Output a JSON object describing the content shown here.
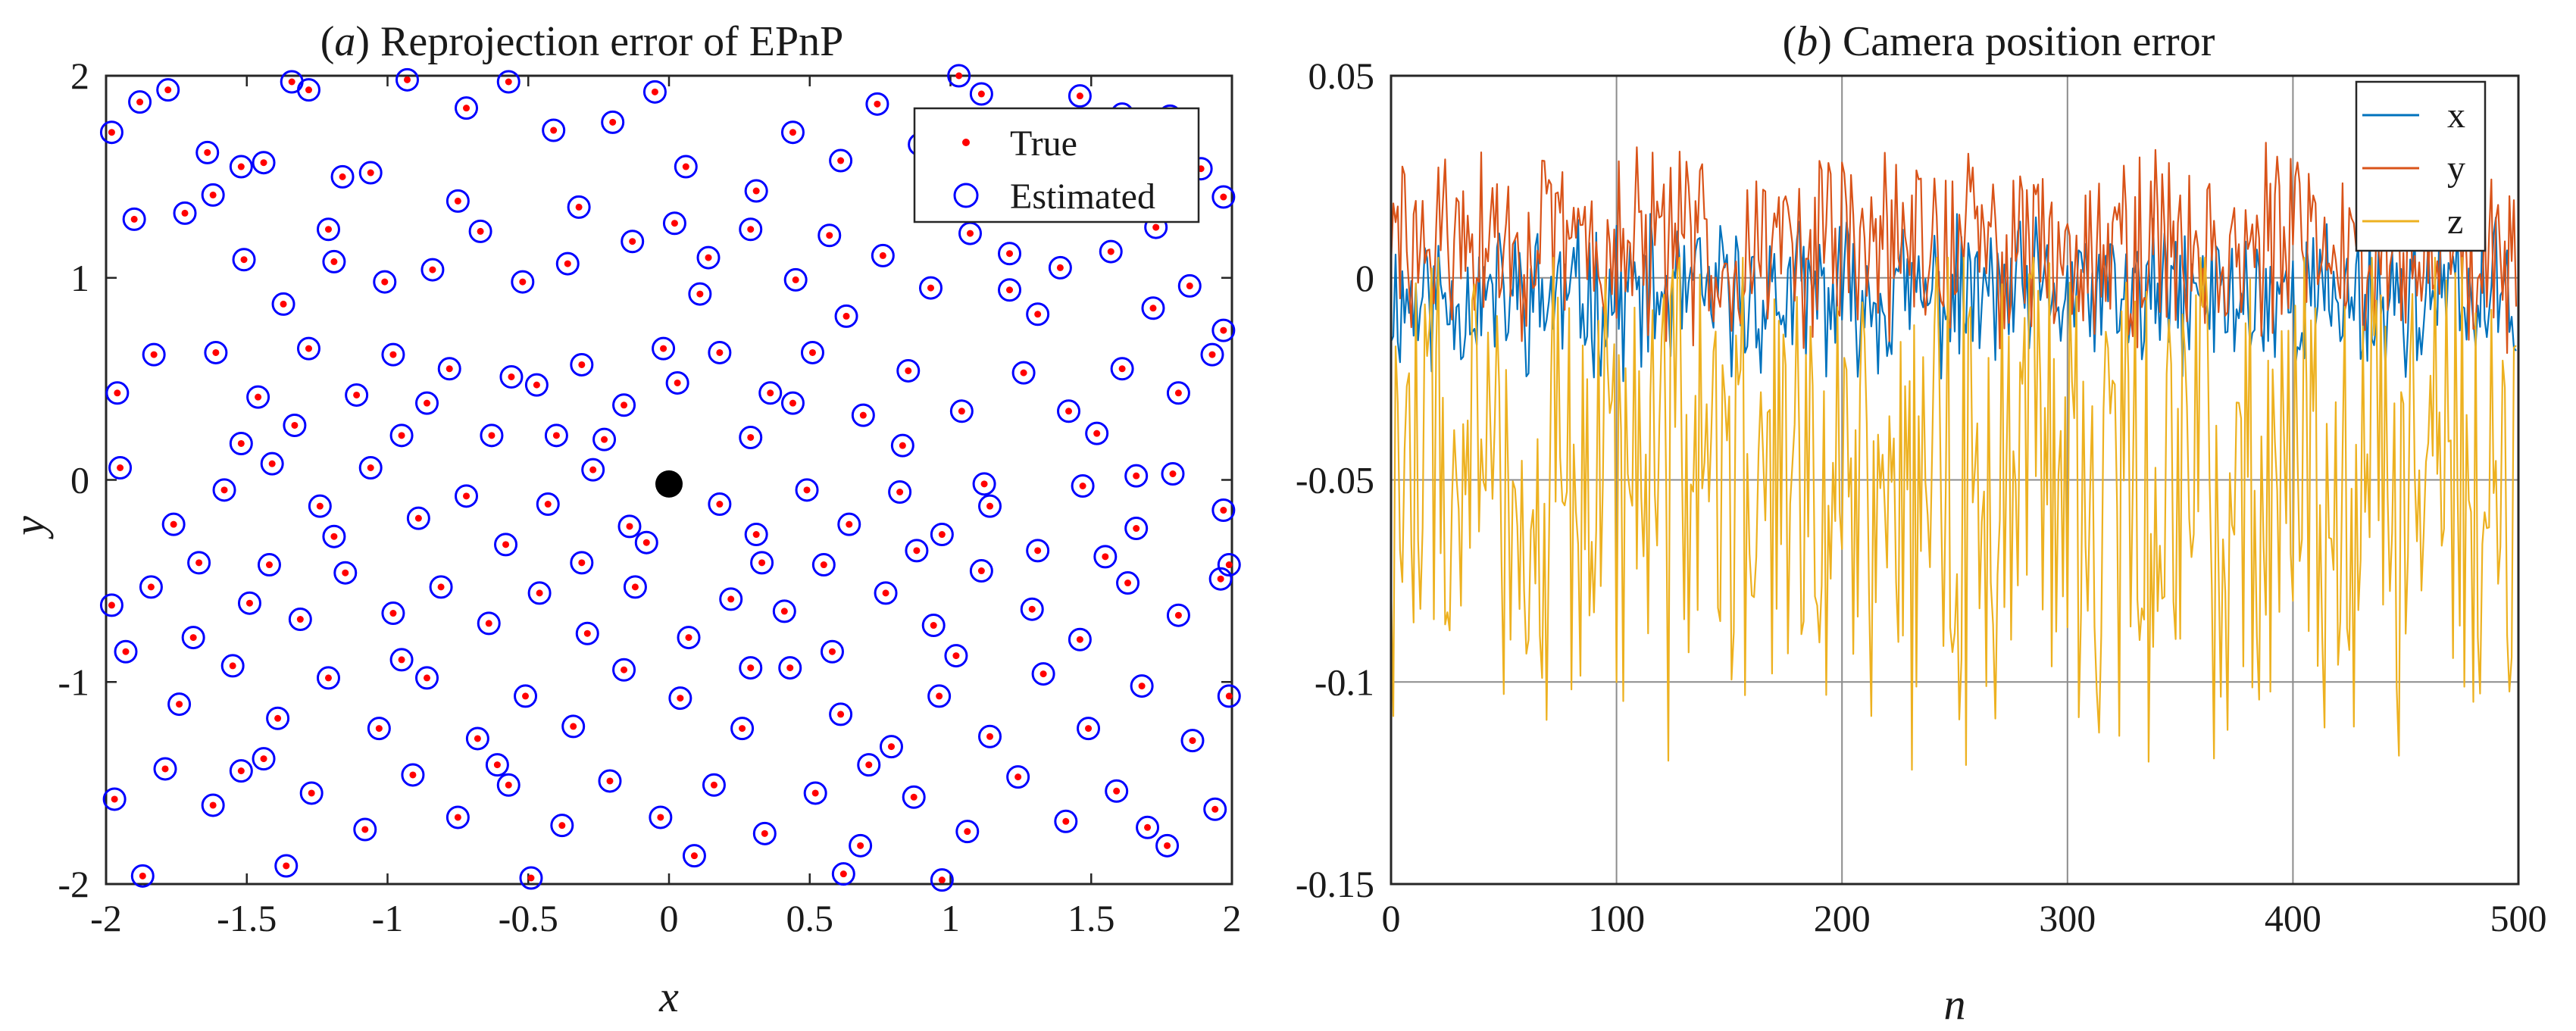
{
  "chart_data": [
    {
      "id": "a",
      "type": "scatter",
      "title_prefix": "(",
      "title_letter": "a",
      "title_suffix": ") Reprojection error of EPnP",
      "xlabel": "x",
      "ylabel": "y",
      "xlim": [
        -2,
        2
      ],
      "ylim": [
        -2,
        2
      ],
      "xticks": [
        -2,
        -1.5,
        -1,
        -0.5,
        0,
        0.5,
        1,
        1.5,
        2
      ],
      "xtick_labels": [
        "-2",
        "-1.5",
        "-1",
        "-0.5",
        "0",
        "0.5",
        "1",
        "1.5",
        "2"
      ],
      "yticks": [
        -2,
        -1,
        0,
        1,
        2
      ],
      "ytick_labels": [
        "-2",
        "-1",
        "0",
        "1",
        "2"
      ],
      "grid": false,
      "legend_position": "top-right",
      "legend": [
        {
          "label": "True",
          "marker": "dot",
          "color": "#ff0000"
        },
        {
          "label": "Estimated",
          "marker": "circle",
          "color": "#0000ff"
        }
      ],
      "center_point": {
        "x": 0,
        "y": -0.02,
        "color": "#000000"
      },
      "points_true": [
        [
          -1.88,
          1.87
        ],
        [
          -1.78,
          1.93
        ],
        [
          -1.64,
          1.62
        ],
        [
          -1.52,
          1.55
        ],
        [
          -1.44,
          1.57
        ],
        [
          -1.34,
          1.97
        ],
        [
          -1.28,
          1.93
        ],
        [
          -1.16,
          1.5
        ],
        [
          -1.06,
          1.52
        ],
        [
          -0.93,
          1.98
        ],
        [
          -0.72,
          1.84
        ],
        [
          -0.57,
          1.97
        ],
        [
          -0.41,
          1.73
        ],
        [
          -0.2,
          1.77
        ],
        [
          -0.05,
          1.92
        ],
        [
          0.06,
          1.55
        ],
        [
          0.31,
          1.43
        ],
        [
          0.44,
          1.72
        ],
        [
          0.61,
          1.58
        ],
        [
          0.74,
          1.86
        ],
        [
          0.89,
          1.66
        ],
        [
          1.11,
          1.91
        ],
        [
          1.25,
          1.73
        ],
        [
          1.37,
          1.38
        ],
        [
          1.46,
          1.9
        ],
        [
          1.61,
          1.81
        ],
        [
          1.78,
          1.8
        ],
        [
          1.89,
          1.54
        ],
        [
          1.97,
          1.4
        ],
        [
          1.03,
          2.0
        ],
        [
          -1.9,
          1.29
        ],
        [
          -1.72,
          1.32
        ],
        [
          -1.51,
          1.09
        ],
        [
          -1.37,
          0.87
        ],
        [
          -1.21,
          1.24
        ],
        [
          -1.01,
          0.98
        ],
        [
          -0.84,
          1.04
        ],
        [
          -0.67,
          1.23
        ],
        [
          -0.52,
          0.98
        ],
        [
          -0.32,
          1.35
        ],
        [
          -0.13,
          1.18
        ],
        [
          0.02,
          1.27
        ],
        [
          0.14,
          1.1
        ],
        [
          0.29,
          1.24
        ],
        [
          0.45,
          0.99
        ],
        [
          0.57,
          1.21
        ],
        [
          0.76,
          1.11
        ],
        [
          0.93,
          0.95
        ],
        [
          1.07,
          1.22
        ],
        [
          1.21,
          1.12
        ],
        [
          1.39,
          1.05
        ],
        [
          1.57,
          1.13
        ],
        [
          1.73,
          1.25
        ],
        [
          1.85,
          0.96
        ],
        [
          1.97,
          0.74
        ],
        [
          -1.83,
          0.62
        ],
        [
          -1.61,
          0.63
        ],
        [
          -1.46,
          0.41
        ],
        [
          -1.28,
          0.65
        ],
        [
          -1.11,
          0.42
        ],
        [
          -0.95,
          0.22
        ],
        [
          -0.78,
          0.55
        ],
        [
          -0.63,
          0.22
        ],
        [
          -0.47,
          0.47
        ],
        [
          -0.31,
          0.57
        ],
        [
          -0.16,
          0.37
        ],
        [
          0.03,
          0.48
        ],
        [
          0.18,
          0.63
        ],
        [
          0.36,
          0.43
        ],
        [
          0.51,
          0.63
        ],
        [
          0.69,
          0.32
        ],
        [
          0.85,
          0.54
        ],
        [
          1.04,
          0.34
        ],
        [
          1.26,
          0.53
        ],
        [
          1.42,
          0.34
        ],
        [
          1.61,
          0.55
        ],
        [
          1.81,
          0.43
        ],
        [
          1.93,
          0.62
        ],
        [
          -1.95,
          0.06
        ],
        [
          -1.76,
          -0.22
        ],
        [
          -1.58,
          -0.05
        ],
        [
          -1.41,
          0.08
        ],
        [
          -1.24,
          -0.13
        ],
        [
          -1.06,
          0.06
        ],
        [
          -0.89,
          -0.19
        ],
        [
          -0.72,
          -0.08
        ],
        [
          -0.58,
          -0.32
        ],
        [
          -0.43,
          -0.12
        ],
        [
          -0.27,
          0.05
        ],
        [
          -0.14,
          -0.23
        ],
        [
          0.18,
          -0.12
        ],
        [
          0.31,
          -0.27
        ],
        [
          0.49,
          -0.05
        ],
        [
          0.64,
          -0.22
        ],
        [
          0.82,
          -0.06
        ],
        [
          0.97,
          -0.27
        ],
        [
          1.14,
          -0.13
        ],
        [
          1.31,
          -0.35
        ],
        [
          1.47,
          -0.03
        ],
        [
          1.66,
          -0.24
        ],
        [
          1.79,
          0.03
        ],
        [
          1.97,
          -0.15
        ],
        [
          -1.84,
          -0.53
        ],
        [
          -1.67,
          -0.41
        ],
        [
          -1.49,
          -0.61
        ],
        [
          -1.31,
          -0.69
        ],
        [
          -1.15,
          -0.46
        ],
        [
          -0.98,
          -0.66
        ],
        [
          -0.81,
          -0.53
        ],
        [
          -0.64,
          -0.71
        ],
        [
          -0.46,
          -0.56
        ],
        [
          -0.29,
          -0.76
        ],
        [
          -0.12,
          -0.53
        ],
        [
          0.07,
          -0.78
        ],
        [
          0.22,
          -0.59
        ],
        [
          0.41,
          -0.65
        ],
        [
          0.58,
          -0.85
        ],
        [
          0.77,
          -0.56
        ],
        [
          0.94,
          -0.72
        ],
        [
          1.11,
          -0.45
        ],
        [
          1.29,
          -0.64
        ],
        [
          1.46,
          -0.79
        ],
        [
          1.63,
          -0.51
        ],
        [
          1.81,
          -0.67
        ],
        [
          1.96,
          -0.49
        ],
        [
          -1.93,
          -0.85
        ],
        [
          -1.74,
          -1.11
        ],
        [
          -1.55,
          -0.92
        ],
        [
          -1.39,
          -1.18
        ],
        [
          -1.21,
          -0.98
        ],
        [
          -1.03,
          -1.23
        ],
        [
          -0.86,
          -0.98
        ],
        [
          -0.68,
          -1.28
        ],
        [
          -0.51,
          -1.07
        ],
        [
          -0.34,
          -1.22
        ],
        [
          -0.16,
          -0.94
        ],
        [
          0.04,
          -1.08
        ],
        [
          0.26,
          -1.23
        ],
        [
          0.43,
          -0.93
        ],
        [
          0.61,
          -1.16
        ],
        [
          0.79,
          -1.32
        ],
        [
          0.96,
          -1.07
        ],
        [
          1.14,
          -1.27
        ],
        [
          1.33,
          -0.96
        ],
        [
          1.49,
          -1.23
        ],
        [
          1.68,
          -1.02
        ],
        [
          1.86,
          -1.29
        ],
        [
          -1.97,
          -1.58
        ],
        [
          -1.79,
          -1.43
        ],
        [
          -1.62,
          -1.61
        ],
        [
          -1.44,
          -1.38
        ],
        [
          -1.27,
          -1.55
        ],
        [
          -1.08,
          -1.73
        ],
        [
          -0.91,
          -1.46
        ],
        [
          -0.75,
          -1.67
        ],
        [
          -0.57,
          -1.51
        ],
        [
          -0.38,
          -1.71
        ],
        [
          -0.21,
          -1.49
        ],
        [
          -0.03,
          -1.67
        ],
        [
          0.16,
          -1.51
        ],
        [
          0.34,
          -1.75
        ],
        [
          0.52,
          -1.55
        ],
        [
          0.68,
          -1.81
        ],
        [
          0.87,
          -1.57
        ],
        [
          1.06,
          -1.74
        ],
        [
          1.24,
          -1.47
        ],
        [
          1.41,
          -1.69
        ],
        [
          1.59,
          -1.54
        ],
        [
          1.77,
          -1.81
        ],
        [
          1.94,
          -1.63
        ],
        [
          -1.87,
          -1.96
        ],
        [
          -1.36,
          -1.91
        ],
        [
          -0.49,
          -1.97
        ],
        [
          0.09,
          -1.86
        ],
        [
          0.62,
          -1.95
        ],
        [
          0.97,
          -1.98
        ],
        [
          -1.62,
          1.41
        ],
        [
          -1.19,
          1.08
        ],
        [
          -0.75,
          1.38
        ],
        [
          -0.36,
          1.07
        ],
        [
          0.11,
          0.92
        ],
        [
          0.63,
          0.81
        ],
        [
          1.31,
          0.82
        ],
        [
          1.72,
          0.85
        ],
        [
          -1.33,
          0.27
        ],
        [
          -0.86,
          0.38
        ],
        [
          -0.23,
          0.2
        ],
        [
          0.29,
          0.21
        ],
        [
          0.83,
          0.17
        ],
        [
          1.52,
          0.23
        ],
        [
          -1.69,
          -0.78
        ],
        [
          -0.95,
          -0.89
        ],
        [
          -0.08,
          -0.31
        ],
        [
          0.33,
          -0.41
        ],
        [
          1.02,
          -0.87
        ],
        [
          1.55,
          -0.38
        ],
        [
          -1.52,
          -1.44
        ],
        [
          -0.61,
          -1.41
        ],
        [
          0.71,
          -1.41
        ],
        [
          1.7,
          -1.72
        ],
        [
          -1.98,
          -0.62
        ],
        [
          -1.96,
          0.43
        ],
        [
          -1.98,
          1.72
        ],
        [
          1.99,
          -0.42
        ],
        [
          1.99,
          -1.07
        ],
        [
          -1.52,
          0.18
        ],
        [
          -0.4,
          0.22
        ],
        [
          0.44,
          0.38
        ],
        [
          1.12,
          -0.02
        ],
        [
          -0.02,
          0.65
        ],
        [
          -0.56,
          0.51
        ],
        [
          0.55,
          -0.42
        ],
        [
          -1.19,
          -0.28
        ],
        [
          1.21,
          0.94
        ],
        [
          -0.31,
          -0.41
        ],
        [
          0.29,
          -0.93
        ],
        [
          -0.98,
          0.62
        ],
        [
          0.88,
          -0.35
        ],
        [
          1.66,
          0.02
        ],
        [
          -1.42,
          -0.42
        ]
      ]
    },
    {
      "id": "b",
      "type": "line",
      "title_prefix": "(",
      "title_letter": "b",
      "title_suffix": ") Camera position error",
      "xlabel": "n",
      "ylabel": "",
      "xlim": [
        0,
        500
      ],
      "ylim": [
        -0.15,
        0.05
      ],
      "xticks": [
        0,
        100,
        200,
        300,
        400,
        500
      ],
      "xtick_labels": [
        "0",
        "100",
        "200",
        "300",
        "400",
        "500"
      ],
      "yticks": [
        0.05,
        0,
        -0.05,
        -0.1,
        -0.15
      ],
      "ytick_labels": [
        "0.05",
        "0",
        "-0.05",
        "-0.1",
        "-0.15"
      ],
      "grid": true,
      "legend_position": "top-right",
      "series": [
        {
          "name": "x",
          "color": "#0072bd",
          "n": 500,
          "mean": -0.005,
          "amplitude": 0.016,
          "min": -0.03,
          "max": 0.02
        },
        {
          "name": "y",
          "color": "#d95319",
          "n": 500,
          "mean": 0.008,
          "amplitude": 0.02,
          "min": -0.025,
          "max": 0.037
        },
        {
          "name": "z",
          "color": "#edb120",
          "n": 500,
          "mean": -0.05,
          "amplitude": 0.055,
          "min": -0.125,
          "max": 0.005
        }
      ]
    }
  ]
}
